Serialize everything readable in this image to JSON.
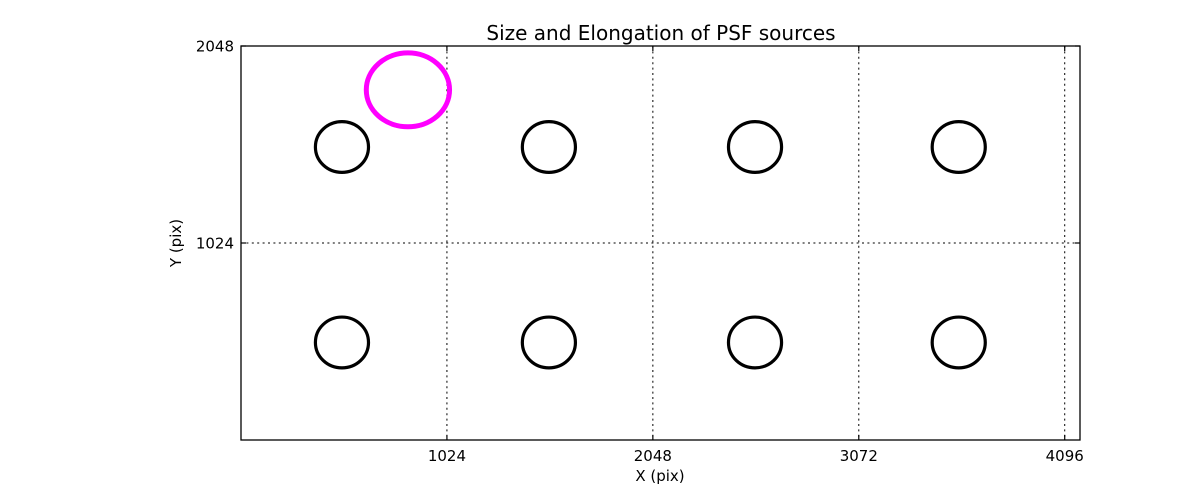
{
  "figure": {
    "background": "#ffffff",
    "axes_edge_color": "#000000"
  },
  "chart_data": {
    "type": "scatter",
    "title": "Size and Elongation of PSF sources",
    "xlabel": "X (pix)",
    "ylabel": "Y (pix)",
    "xlim": [
      0,
      4172
    ],
    "ylim": [
      0,
      2048
    ],
    "xticks": [
      1024,
      2048,
      3072,
      4096
    ],
    "yticks": [
      1024,
      2048
    ],
    "grid": {
      "visible": true,
      "style": "dotted",
      "color": "#000000"
    },
    "source_style": {
      "stroke": "#000000",
      "stroke_width": 3.2,
      "fill": "none"
    },
    "sources": [
      {
        "x": 502,
        "y": 507,
        "r": 132
      },
      {
        "x": 1531,
        "y": 507,
        "r": 132
      },
      {
        "x": 2556,
        "y": 507,
        "r": 132
      },
      {
        "x": 3569,
        "y": 507,
        "r": 132
      },
      {
        "x": 502,
        "y": 1523,
        "r": 132
      },
      {
        "x": 1531,
        "y": 1523,
        "r": 132
      },
      {
        "x": 2556,
        "y": 1523,
        "r": 132
      },
      {
        "x": 3569,
        "y": 1523,
        "r": 132
      }
    ],
    "reference_ellipse": {
      "x": 830,
      "y": 1820,
      "rx": 207,
      "ry": 192,
      "stroke": "#ff00ff",
      "stroke_width": 5,
      "fill": "none"
    }
  }
}
